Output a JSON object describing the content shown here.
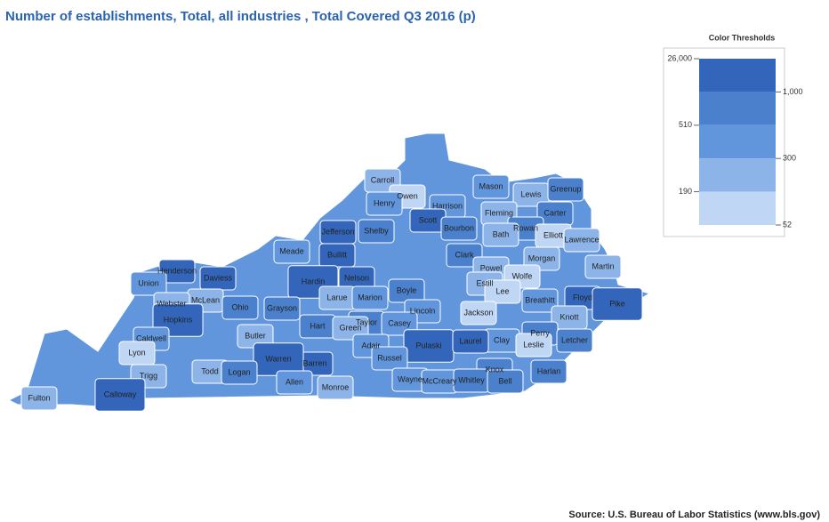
{
  "title": "Number of establishments, Total, all industries , Total Covered Q3 2016 (p)",
  "source": "Source: U.S. Bureau of Labor Statistics (www.bls.gov)",
  "legend": {
    "title": "Color Thresholds",
    "colors": [
      "#3366bb",
      "#4a80cc",
      "#6196dc",
      "#8db4e8",
      "#c0d6f5"
    ],
    "left_labels": [
      {
        "value": 26000,
        "label": "26,000"
      },
      510,
      190
    ],
    "right_labels": [
      {
        "value": 1000,
        "label": "1,000"
      },
      300,
      52
    ]
  },
  "counties": [
    {
      "name": "Carroll",
      "color": "#8db4e8"
    },
    {
      "name": "Owen",
      "color": "#c0d6f5"
    },
    {
      "name": "Henry",
      "color": "#6196dc"
    },
    {
      "name": "Harrison",
      "color": "#6196dc"
    },
    {
      "name": "Mason",
      "color": "#6196dc"
    },
    {
      "name": "Lewis",
      "color": "#8db4e8"
    },
    {
      "name": "Greenup",
      "color": "#4a80cc"
    },
    {
      "name": "Fleming",
      "color": "#8db4e8"
    },
    {
      "name": "Carter",
      "color": "#4a80cc"
    },
    {
      "name": "Scott",
      "color": "#3366bb"
    },
    {
      "name": "Bourbon",
      "color": "#4a80cc"
    },
    {
      "name": "Rowan",
      "color": "#4a80cc"
    },
    {
      "name": "Elliott",
      "color": "#c0d6f5"
    },
    {
      "name": "Bath",
      "color": "#8db4e8"
    },
    {
      "name": "Lawrence",
      "color": "#8db4e8"
    },
    {
      "name": "Jefferson",
      "color": "#3366bb"
    },
    {
      "name": "Shelby",
      "color": "#4a80cc"
    },
    {
      "name": "Meade",
      "color": "#6196dc"
    },
    {
      "name": "Bullitt",
      "color": "#3366bb"
    },
    {
      "name": "Clark",
      "color": "#4a80cc"
    },
    {
      "name": "Morgan",
      "color": "#8db4e8"
    },
    {
      "name": "Powel",
      "color": "#8db4e8"
    },
    {
      "name": "Martin",
      "color": "#8db4e8"
    },
    {
      "name": "Henderson",
      "color": "#3366bb"
    },
    {
      "name": "Daviess",
      "color": "#3366bb"
    },
    {
      "name": "Union",
      "color": "#6196dc"
    },
    {
      "name": "Hardin",
      "color": "#3366bb"
    },
    {
      "name": "Nelson",
      "color": "#3366bb"
    },
    {
      "name": "Wolfe",
      "color": "#c0d6f5"
    },
    {
      "name": "Estill",
      "color": "#8db4e8"
    },
    {
      "name": "Lee",
      "color": "#c0d6f5"
    },
    {
      "name": "Boyle",
      "color": "#4a80cc"
    },
    {
      "name": "Floyd",
      "color": "#3366bb"
    },
    {
      "name": "McLean",
      "color": "#8db4e8"
    },
    {
      "name": "Webster",
      "color": "#8db4e8"
    },
    {
      "name": "Larue",
      "color": "#8db4e8"
    },
    {
      "name": "Marion",
      "color": "#6196dc"
    },
    {
      "name": "Breathitt",
      "color": "#6196dc"
    },
    {
      "name": "Ohio",
      "color": "#4a80cc"
    },
    {
      "name": "Grayson",
      "color": "#4a80cc"
    },
    {
      "name": "Lincoln",
      "color": "#6196dc"
    },
    {
      "name": "Jackson",
      "color": "#c0d6f5"
    },
    {
      "name": "Pike",
      "color": "#3366bb"
    },
    {
      "name": "Knott",
      "color": "#8db4e8"
    },
    {
      "name": "Hopkins",
      "color": "#3366bb"
    },
    {
      "name": "Taylor",
      "color": "#4a80cc"
    },
    {
      "name": "Casey",
      "color": "#6196dc"
    },
    {
      "name": "Hart",
      "color": "#4a80cc"
    },
    {
      "name": "Green",
      "color": "#8db4e8"
    },
    {
      "name": "Perry",
      "color": "#4a80cc"
    },
    {
      "name": "Caldwell",
      "color": "#6196dc"
    },
    {
      "name": "Butler",
      "color": "#8db4e8"
    },
    {
      "name": "Clay",
      "color": "#6196dc"
    },
    {
      "name": "Leslie",
      "color": "#c0d6f5"
    },
    {
      "name": "Letcher",
      "color": "#4a80cc"
    },
    {
      "name": "Adair",
      "color": "#6196dc"
    },
    {
      "name": "Pulaski",
      "color": "#3366bb"
    },
    {
      "name": "Laurel",
      "color": "#3366bb"
    },
    {
      "name": "Lyon",
      "color": "#c0d6f5"
    },
    {
      "name": "Russel",
      "color": "#6196dc"
    },
    {
      "name": "Barren",
      "color": "#3366bb"
    },
    {
      "name": "Warren",
      "color": "#3366bb"
    },
    {
      "name": "Todd",
      "color": "#8db4e8"
    },
    {
      "name": "Logan",
      "color": "#4a80cc"
    },
    {
      "name": "Knox",
      "color": "#4a80cc"
    },
    {
      "name": "Harlan",
      "color": "#4a80cc"
    },
    {
      "name": "Trigg",
      "color": "#8db4e8"
    },
    {
      "name": "Wayne",
      "color": "#6196dc"
    },
    {
      "name": "McCreary",
      "color": "#6196dc"
    },
    {
      "name": "Whitley",
      "color": "#4a80cc"
    },
    {
      "name": "Bell",
      "color": "#4a80cc"
    },
    {
      "name": "Allen",
      "color": "#6196dc"
    },
    {
      "name": "Monroe",
      "color": "#8db4e8"
    },
    {
      "name": "Calloway",
      "color": "#3366bb"
    },
    {
      "name": "Fulton",
      "color": "#8db4e8"
    }
  ]
}
